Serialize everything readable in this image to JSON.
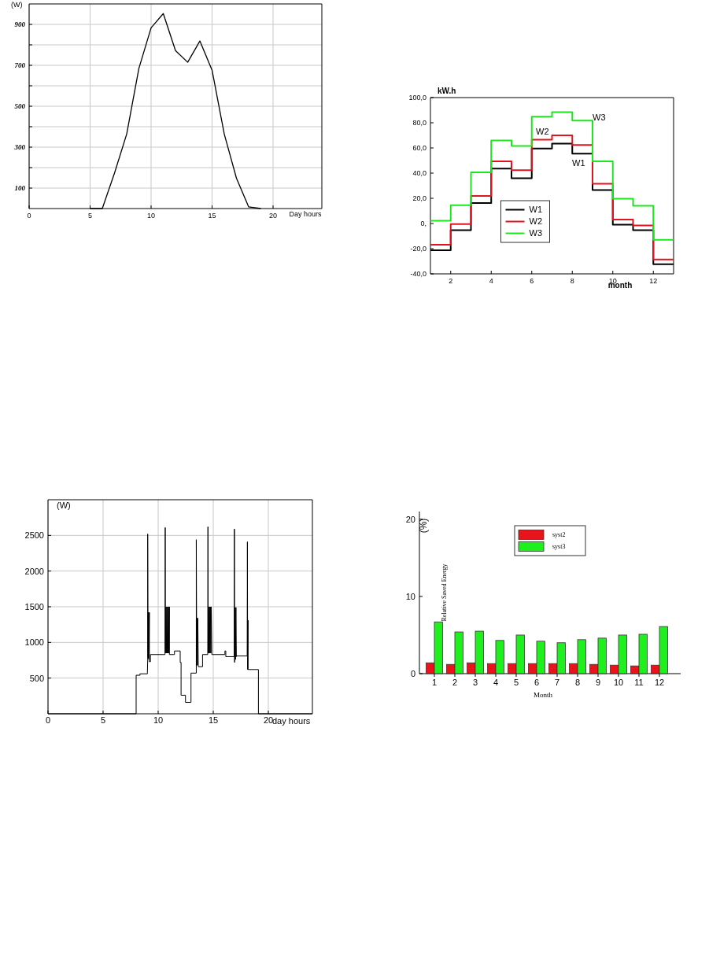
{
  "chart_data": [
    {
      "type": "line",
      "ylabel": "(W)",
      "xlabel": "Day hours",
      "x": [
        5,
        6,
        7,
        8,
        9,
        10,
        11,
        12,
        13,
        14,
        15,
        16,
        17,
        18,
        19
      ],
      "series": [
        {
          "color": "#000000",
          "values": [
            0,
            0,
            173,
            364,
            685,
            883,
            953,
            772,
            715,
            819,
            676,
            364,
            148,
            8,
            0
          ]
        }
      ],
      "xlim": [
        0,
        24
      ],
      "ylim": [
        0,
        1000
      ],
      "xticks": [
        0,
        5,
        10,
        15,
        20
      ],
      "yticks": [
        100,
        {
          "value": 200,
          "label": null
        },
        300,
        {
          "value": 400,
          "label": null
        },
        500,
        {
          "value": 600,
          "label": null
        },
        700,
        {
          "value": 800,
          "label": null
        },
        900
      ],
      "grid": true
    },
    {
      "type": "step",
      "ylabel": "kW.h",
      "xlabel": "month",
      "x": [
        1,
        2,
        3,
        4,
        5,
        6,
        7,
        8,
        9,
        10,
        11,
        12,
        13
      ],
      "series": [
        {
          "name": "W1",
          "color": "#000000",
          "values": [
            -21.3,
            -5.3,
            16.2,
            43.6,
            35.9,
            59.6,
            63.4,
            55.5,
            26.6,
            -0.9,
            -5.3,
            -32.3,
            -32.3
          ]
        },
        {
          "name": "W2",
          "color": "#e0141e",
          "values": [
            -16.9,
            -0.5,
            21.8,
            49.4,
            42.4,
            66.5,
            70,
            62.3,
            31.6,
            3.1,
            -1.5,
            -28.6,
            -28.6
          ]
        },
        {
          "name": "W3",
          "color": "#1ee61e",
          "values": [
            2.2,
            14.5,
            40.7,
            66,
            61.5,
            84.8,
            88.4,
            81.7,
            49.4,
            19.7,
            14.1,
            -13,
            -13
          ]
        }
      ],
      "xlim": [
        1,
        13
      ],
      "ylim": [
        -40,
        100
      ],
      "xticks": [
        2,
        4,
        6,
        8,
        10,
        12
      ],
      "yticks": [
        {
          "value": -40,
          "label": "-40,0"
        },
        {
          "value": -20,
          "label": "-20,0"
        },
        {
          "value": 0,
          "label": "0,"
        },
        {
          "value": 20,
          "label": "20,0"
        },
        {
          "value": 40,
          "label": "40,0"
        },
        {
          "value": 60,
          "label": "60,0"
        },
        {
          "value": 80,
          "label": "80,0"
        },
        {
          "value": 100,
          "label": "100,0"
        }
      ],
      "legend": "bottom",
      "annotations": [
        "W3",
        "W2",
        "W1"
      ]
    },
    {
      "type": "line",
      "ylabel": "(W)",
      "xlabel": "day hours",
      "x": [
        0,
        8.0,
        8.0,
        8.35,
        8.35,
        9.02,
        9.05,
        9.05,
        9.08,
        9.1,
        9.12,
        9.14,
        9.16,
        9.2,
        9.2,
        9.3,
        9.3,
        10.62,
        10.64,
        10.66,
        10.7,
        10.74,
        10.78,
        10.82,
        10.86,
        10.9,
        10.94,
        10.98,
        11.02,
        11.02,
        11.48,
        11.48,
        12.0,
        12.0,
        12.08,
        12.08,
        12.48,
        12.48,
        12.98,
        12.98,
        13.46,
        13.46,
        13.5,
        13.52,
        13.56,
        13.6,
        13.64,
        13.64,
        14.03,
        14.03,
        14.5,
        14.52,
        14.54,
        14.58,
        14.62,
        14.66,
        14.7,
        14.74,
        14.78,
        14.82,
        14.87,
        14.87,
        16.06,
        16.06,
        16.14,
        16.14,
        16.9,
        16.92,
        16.94,
        16.98,
        17.02,
        17.06,
        17.1,
        17.1,
        18.08,
        18.1,
        18.12,
        18.16,
        18.16,
        19.1,
        19.1,
        24
      ],
      "series": [
        {
          "color": "#000000",
          "values": [
            0,
            0,
            540,
            540,
            560,
            560,
            760,
            2520,
            780,
            1420,
            780,
            1420,
            760,
            1420,
            730,
            730,
            830,
            830,
            2610,
            850,
            1500,
            850,
            1500,
            850,
            1500,
            850,
            1500,
            850,
            1500,
            830,
            830,
            880,
            880,
            720,
            720,
            260,
            260,
            160,
            160,
            570,
            570,
            2440,
            680,
            1340,
            680,
            1340,
            680,
            660,
            660,
            830,
            830,
            2620,
            850,
            1500,
            850,
            1500,
            850,
            1500,
            850,
            1500,
            850,
            830,
            830,
            880,
            880,
            800,
            800,
            2590,
            720,
            1490,
            760,
            1490,
            800,
            810,
            810,
            2410,
            620,
            1310,
            620,
            620,
            0,
            0
          ]
        }
      ],
      "xlim": [
        0,
        24
      ],
      "ylim": [
        0,
        3000
      ],
      "xticks": [
        0,
        5,
        10,
        15,
        20
      ],
      "yticks": [
        500,
        1000,
        1500,
        2000,
        2500
      ],
      "grid": true
    },
    {
      "type": "bar",
      "ylabel": "Relative Saved Energy",
      "xlabel": "Month",
      "annotations": [
        "(%)"
      ],
      "categories": [
        "1",
        "2",
        "3",
        "4",
        "5",
        "6",
        "7",
        "8",
        "9",
        "10",
        "11",
        "12"
      ],
      "series": [
        {
          "name": "syst2",
          "color": "#e8141c",
          "values": [
            1.4,
            1.2,
            1.4,
            1.3,
            1.3,
            1.3,
            1.3,
            1.3,
            1.2,
            1.1,
            1.0,
            1.1
          ]
        },
        {
          "name": "syst3",
          "color": "#1ef01e",
          "values": [
            6.7,
            5.4,
            5.5,
            4.3,
            5.0,
            4.2,
            4.0,
            4.4,
            4.6,
            5.0,
            5.1,
            6.1
          ]
        }
      ],
      "ylim": [
        0,
        21
      ],
      "yticks": [
        0,
        10,
        20
      ],
      "legend": "top"
    }
  ]
}
